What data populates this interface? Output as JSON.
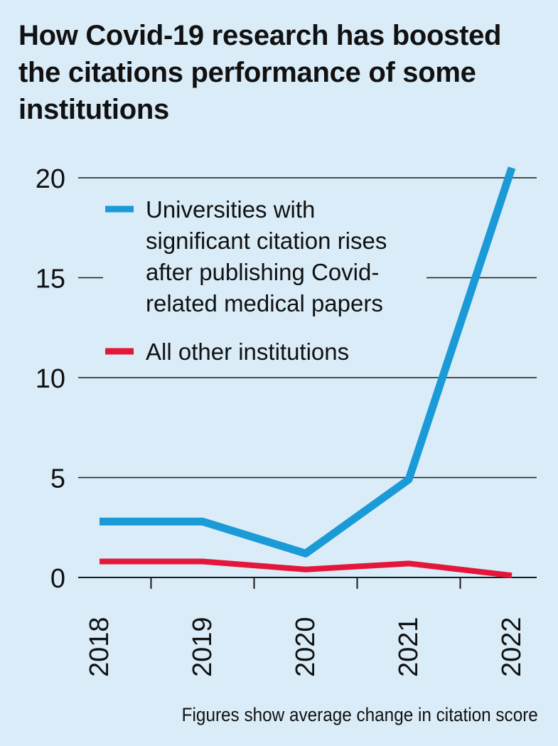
{
  "chart_data": {
    "type": "line",
    "title": "How Covid-19 research has boosted the citations performance of some institutions",
    "categories": [
      "2018",
      "2019",
      "2020",
      "2021",
      "2022"
    ],
    "ylim": [
      0,
      20
    ],
    "yticks": [
      "0",
      "5",
      "10",
      "15",
      "20"
    ],
    "series": [
      {
        "name": "Universities with significant citation rises after publishing Covid-related medical papers",
        "legend_lines": [
          "Universities with",
          "significant citation rises",
          "after publishing Covid-",
          "related medical papers"
        ],
        "color": "#1a9ad6",
        "values": [
          2.8,
          2.8,
          1.2,
          4.9,
          20.5
        ]
      },
      {
        "name": "All other institutions",
        "legend_lines": [
          "All other institutions"
        ],
        "color": "#e4173a",
        "values": [
          0.8,
          0.8,
          0.4,
          0.7,
          0.1
        ]
      }
    ],
    "xlabel": "",
    "ylabel": "",
    "footnote": "Figures show average change in citation score"
  }
}
